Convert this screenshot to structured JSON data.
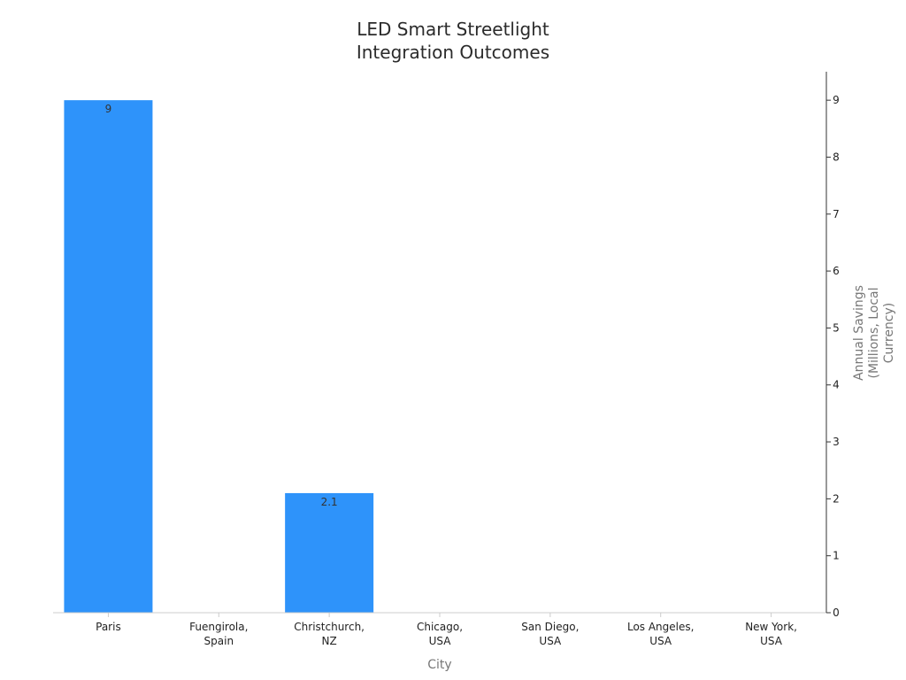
{
  "chart_data": {
    "type": "bar",
    "title_lines": [
      "LED Smart Streetlight",
      "Integration Outcomes"
    ],
    "xlabel": "City",
    "ylabel_lines": [
      "Annual Savings",
      "(Millions, Local",
      "Currency)"
    ],
    "categories": [
      [
        "Paris"
      ],
      [
        "Fuengirola,",
        "Spain"
      ],
      [
        "Christchurch,",
        "NZ"
      ],
      [
        "Chicago,",
        "USA"
      ],
      [
        "San Diego,",
        "USA"
      ],
      [
        "Los Angeles,",
        "USA"
      ],
      [
        "New York,",
        "USA"
      ]
    ],
    "values": [
      9,
      null,
      2.1,
      null,
      null,
      null,
      null
    ],
    "data_labels": [
      "9",
      "",
      "2.1",
      "",
      "",
      "",
      ""
    ],
    "ylim": [
      0,
      9.5
    ],
    "yticks": [
      0,
      1,
      2,
      3,
      4,
      5,
      6,
      7,
      8,
      9
    ],
    "y_axis_side": "right",
    "grid": false,
    "bar_color": "#2e93fa"
  }
}
